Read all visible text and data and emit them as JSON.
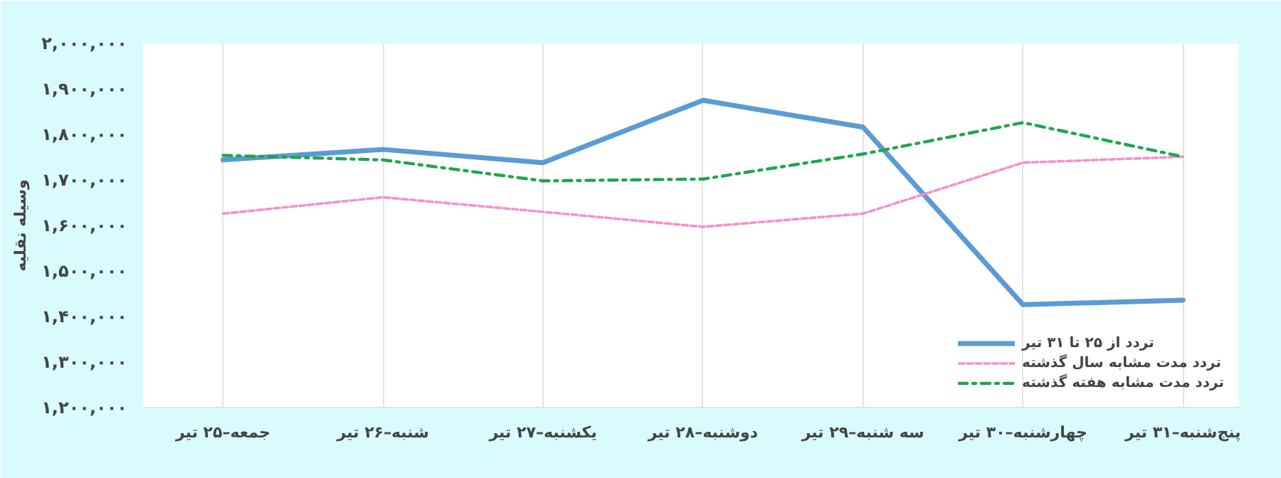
{
  "chart_data": {
    "type": "line",
    "ylabel": "وسیله نقلیه",
    "categories": [
      "جمعه–۲۵ تیر",
      "شنبه–۲۶ تیر",
      "یکشنبه–۲۷ تیر",
      "دوشنبه–۲۸ تیر",
      "سه شنبه–۲۹ تیر",
      "چهارشنبه–۳۰ تیر",
      "پنج‌شنبه–۳۱ تیر"
    ],
    "series": [
      {
        "name": "تردد از ۲۵ تا ۳۱ تیر",
        "color": "#5b9bd5",
        "line_style": "solid",
        "values": [
          1744000,
          1767000,
          1738000,
          1875000,
          1816000,
          1426000,
          1436000
        ]
      },
      {
        "name": "تردد مدت مشابه سال گذشته",
        "color": "#f78fcb",
        "line_style": "dashed",
        "values": [
          1626000,
          1662000,
          1630000,
          1597000,
          1626000,
          1738000,
          1751000
        ]
      },
      {
        "name": "تردد مدت مشابه هفته گذشته",
        "color": "#1fa64a",
        "line_style": "dashdot",
        "values": [
          1754000,
          1744000,
          1698000,
          1702000,
          1757000,
          1826000,
          1751000
        ]
      }
    ],
    "ylim": [
      1200000,
      2000000
    ],
    "yticks": [
      {
        "value": 1200000,
        "label": "۱,۲۰۰,۰۰۰"
      },
      {
        "value": 1300000,
        "label": "۱,۳۰۰,۰۰۰"
      },
      {
        "value": 1400000,
        "label": "۱,۴۰۰,۰۰۰"
      },
      {
        "value": 1500000,
        "label": "۱,۵۰۰,۰۰۰"
      },
      {
        "value": 1600000,
        "label": "۱,۶۰۰,۰۰۰"
      },
      {
        "value": 1700000,
        "label": "۱,۷۰۰,۰۰۰"
      },
      {
        "value": 1800000,
        "label": "۱,۸۰۰,۰۰۰"
      },
      {
        "value": 1900000,
        "label": "۱,۹۰۰,۰۰۰"
      },
      {
        "value": 2000000,
        "label": "۲,۰۰۰,۰۰۰"
      }
    ],
    "grid": "x",
    "legend": "bottom right",
    "marker": "none"
  }
}
